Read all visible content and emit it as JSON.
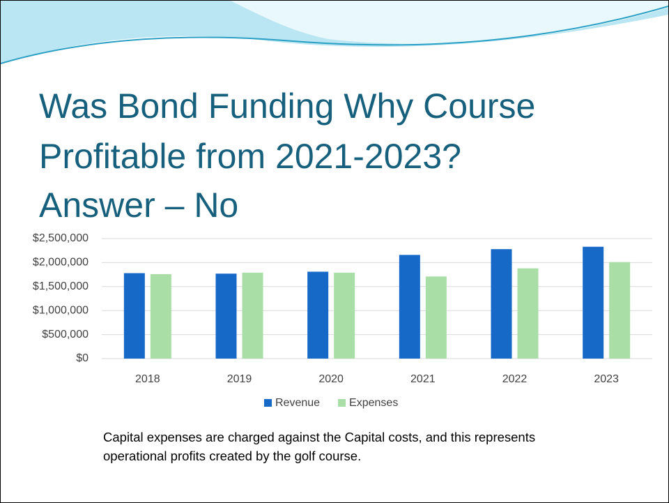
{
  "chart_data": {
    "type": "bar",
    "title": [
      "Was Bond Funding Why Course",
      "Profitable from 2021-2023?",
      "Answer – No"
    ],
    "categories": [
      "2018",
      "2019",
      "2020",
      "2021",
      "2022",
      "2023"
    ],
    "series": [
      {
        "name": "Revenue",
        "color": "#1769c8",
        "values": [
          1780000,
          1770000,
          1810000,
          2160000,
          2280000,
          2330000
        ]
      },
      {
        "name": "Expenses",
        "color": "#a9dfa6",
        "values": [
          1760000,
          1790000,
          1790000,
          1710000,
          1880000,
          2010000
        ]
      }
    ],
    "ylim": [
      0,
      2500000
    ],
    "yticks": [
      {
        "value": 0,
        "label": "$0"
      },
      {
        "value": 500000,
        "label": "$500,000"
      },
      {
        "value": 1000000,
        "label": "$1,000,000"
      },
      {
        "value": 1500000,
        "label": "$1,500,000"
      },
      {
        "value": 2000000,
        "label": "$2,000,000"
      },
      {
        "value": 2500000,
        "label": "$2,500,000"
      }
    ],
    "grid": true,
    "legend": "bottom",
    "annotation": "Capital expenses are charged against the Capital costs, and this represents operational profits created by the golf course."
  }
}
